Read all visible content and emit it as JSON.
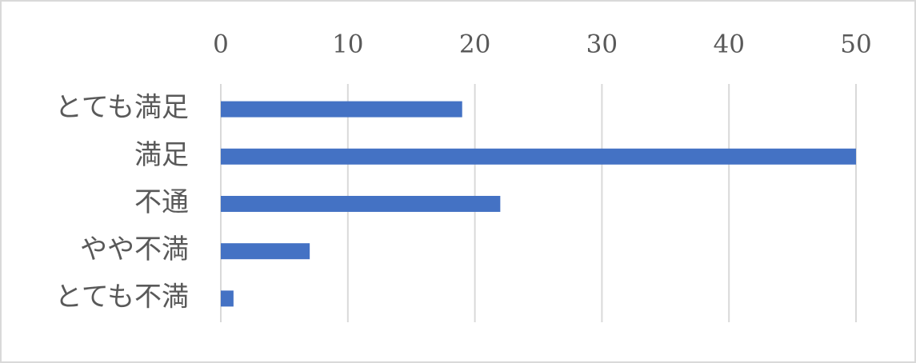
{
  "chart_data": {
    "type": "bar",
    "orientation": "horizontal",
    "categories": [
      "とても満足",
      "満足",
      "不通",
      "やや不満",
      "とても不満"
    ],
    "values": [
      19,
      50,
      22,
      7,
      1
    ],
    "color": "#4472c4",
    "xlim": [
      0,
      50
    ],
    "xticks": [
      0,
      10,
      20,
      30,
      40,
      50
    ],
    "grid": true
  }
}
